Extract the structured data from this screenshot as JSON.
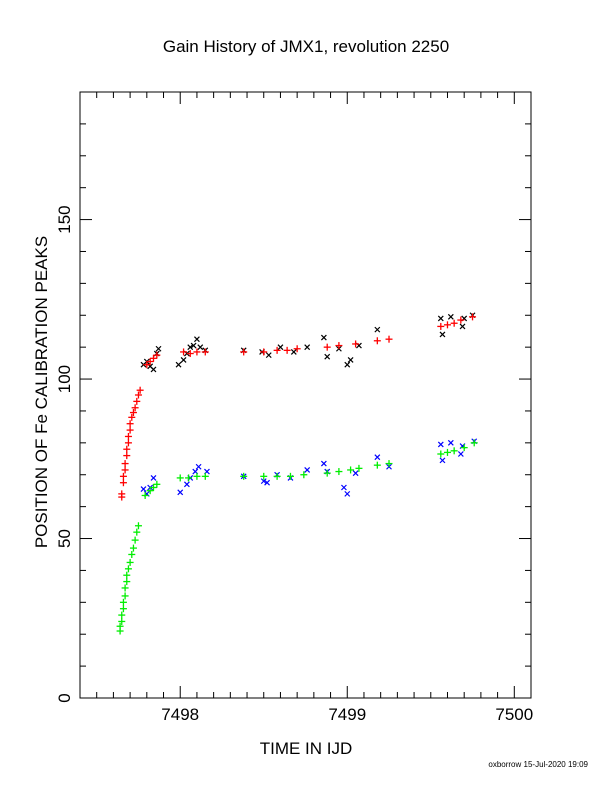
{
  "chart_data": {
    "type": "scatter",
    "title": "Gain History of JMX1, revolution 2250",
    "xlabel": "TIME IN IJD",
    "ylabel": "POSITION OF Fe CALIBRATION PEAKS",
    "xlim": [
      7497.4,
      7500.1
    ],
    "ylim": [
      0,
      190
    ],
    "x_ticks": [
      7498,
      7499,
      7500
    ],
    "y_ticks": [
      0,
      50,
      100,
      150
    ],
    "grid": false,
    "footer": "oxborrow 15-Jul-2020 19:09",
    "series": [
      {
        "marker": "x",
        "color": "#000000",
        "points": [
          [
            7497.78,
            104.5
          ],
          [
            7497.8,
            105.5
          ],
          [
            7497.82,
            104.0
          ],
          [
            7497.84,
            103.0
          ],
          [
            7497.86,
            108.0
          ],
          [
            7497.87,
            109.5
          ],
          [
            7497.99,
            104.5
          ],
          [
            7498.02,
            106.0
          ],
          [
            7498.04,
            108.0
          ],
          [
            7498.06,
            110.0
          ],
          [
            7498.08,
            110.5
          ],
          [
            7498.1,
            112.5
          ],
          [
            7498.12,
            110.0
          ],
          [
            7498.15,
            109.0
          ],
          [
            7498.38,
            109.0
          ],
          [
            7498.49,
            108.5
          ],
          [
            7498.53,
            107.5
          ],
          [
            7498.6,
            110.0
          ],
          [
            7498.68,
            108.5
          ],
          [
            7498.76,
            110.0
          ],
          [
            7498.86,
            113.0
          ],
          [
            7498.88,
            107.0
          ],
          [
            7498.95,
            109.5
          ],
          [
            7499.0,
            104.5
          ],
          [
            7499.02,
            106.0
          ],
          [
            7499.07,
            110.5
          ],
          [
            7499.18,
            115.5
          ],
          [
            7499.56,
            119.0
          ],
          [
            7499.57,
            114.0
          ],
          [
            7499.62,
            119.5
          ],
          [
            7499.69,
            116.5
          ],
          [
            7499.7,
            119.0
          ],
          [
            7499.75,
            120.0
          ]
        ]
      },
      {
        "marker": "+",
        "color": "#ff0000",
        "points": [
          [
            7497.65,
            63.0
          ],
          [
            7497.65,
            64.0
          ],
          [
            7497.66,
            67.5
          ],
          [
            7497.66,
            69.5
          ],
          [
            7497.67,
            71.5
          ],
          [
            7497.67,
            73.5
          ],
          [
            7497.68,
            76.0
          ],
          [
            7497.68,
            78.0
          ],
          [
            7497.69,
            80.0
          ],
          [
            7497.69,
            82.0
          ],
          [
            7497.7,
            84.0
          ],
          [
            7497.7,
            86.0
          ],
          [
            7497.71,
            88.0
          ],
          [
            7497.72,
            89.5
          ],
          [
            7497.73,
            91.0
          ],
          [
            7497.74,
            93.0
          ],
          [
            7497.75,
            95.0
          ],
          [
            7497.76,
            96.5
          ],
          [
            7497.8,
            104.5
          ],
          [
            7497.82,
            105.5
          ],
          [
            7497.84,
            106.5
          ],
          [
            7497.86,
            107.5
          ],
          [
            7498.02,
            108.5
          ],
          [
            7498.06,
            108.0
          ],
          [
            7498.1,
            108.5
          ],
          [
            7498.15,
            108.5
          ],
          [
            7498.38,
            108.5
          ],
          [
            7498.5,
            108.5
          ],
          [
            7498.58,
            109.0
          ],
          [
            7498.64,
            109.0
          ],
          [
            7498.7,
            109.5
          ],
          [
            7498.88,
            110.0
          ],
          [
            7498.95,
            110.5
          ],
          [
            7499.05,
            111.0
          ],
          [
            7499.18,
            112.0
          ],
          [
            7499.25,
            112.5
          ],
          [
            7499.56,
            116.5
          ],
          [
            7499.6,
            117.0
          ],
          [
            7499.64,
            117.5
          ],
          [
            7499.68,
            118.5
          ],
          [
            7499.75,
            119.5
          ]
        ]
      },
      {
        "marker": "x",
        "color": "#0000ff",
        "points": [
          [
            7497.78,
            65.5
          ],
          [
            7497.8,
            64.0
          ],
          [
            7497.82,
            66.0
          ],
          [
            7497.84,
            69.0
          ],
          [
            7498.0,
            64.5
          ],
          [
            7498.04,
            67.0
          ],
          [
            7498.06,
            69.0
          ],
          [
            7498.09,
            71.0
          ],
          [
            7498.11,
            72.5
          ],
          [
            7498.16,
            71.0
          ],
          [
            7498.38,
            69.5
          ],
          [
            7498.5,
            68.0
          ],
          [
            7498.52,
            67.5
          ],
          [
            7498.58,
            70.0
          ],
          [
            7498.66,
            69.0
          ],
          [
            7498.76,
            71.5
          ],
          [
            7498.86,
            73.5
          ],
          [
            7498.88,
            71.0
          ],
          [
            7498.98,
            66.0
          ],
          [
            7499.0,
            64.0
          ],
          [
            7499.05,
            70.5
          ],
          [
            7499.18,
            75.5
          ],
          [
            7499.25,
            72.5
          ],
          [
            7499.56,
            79.5
          ],
          [
            7499.57,
            74.5
          ],
          [
            7499.62,
            80.0
          ],
          [
            7499.68,
            76.5
          ],
          [
            7499.69,
            79.0
          ],
          [
            7499.76,
            80.5
          ]
        ]
      },
      {
        "marker": "+",
        "color": "#00ee00",
        "points": [
          [
            7497.64,
            21.0
          ],
          [
            7497.64,
            22.5
          ],
          [
            7497.65,
            24.0
          ],
          [
            7497.65,
            26.0
          ],
          [
            7497.66,
            28.0
          ],
          [
            7497.66,
            30.0
          ],
          [
            7497.67,
            32.0
          ],
          [
            7497.67,
            34.5
          ],
          [
            7497.68,
            36.5
          ],
          [
            7497.68,
            38.5
          ],
          [
            7497.69,
            40.5
          ],
          [
            7497.7,
            42.5
          ],
          [
            7497.71,
            45.0
          ],
          [
            7497.72,
            47.0
          ],
          [
            7497.73,
            49.5
          ],
          [
            7497.74,
            52.0
          ],
          [
            7497.75,
            54.0
          ],
          [
            7497.79,
            63.5
          ],
          [
            7497.82,
            65.0
          ],
          [
            7497.84,
            66.0
          ],
          [
            7497.86,
            67.0
          ],
          [
            7498.0,
            69.0
          ],
          [
            7498.05,
            69.0
          ],
          [
            7498.1,
            69.5
          ],
          [
            7498.15,
            69.5
          ],
          [
            7498.38,
            69.5
          ],
          [
            7498.5,
            69.5
          ],
          [
            7498.58,
            69.5
          ],
          [
            7498.66,
            69.5
          ],
          [
            7498.74,
            70.0
          ],
          [
            7498.88,
            70.5
          ],
          [
            7498.95,
            71.0
          ],
          [
            7499.02,
            71.5
          ],
          [
            7499.07,
            72.0
          ],
          [
            7499.18,
            73.0
          ],
          [
            7499.25,
            73.5
          ],
          [
            7499.56,
            76.5
          ],
          [
            7499.6,
            77.0
          ],
          [
            7499.64,
            77.5
          ],
          [
            7499.7,
            78.5
          ],
          [
            7499.76,
            80.0
          ]
        ]
      }
    ]
  }
}
